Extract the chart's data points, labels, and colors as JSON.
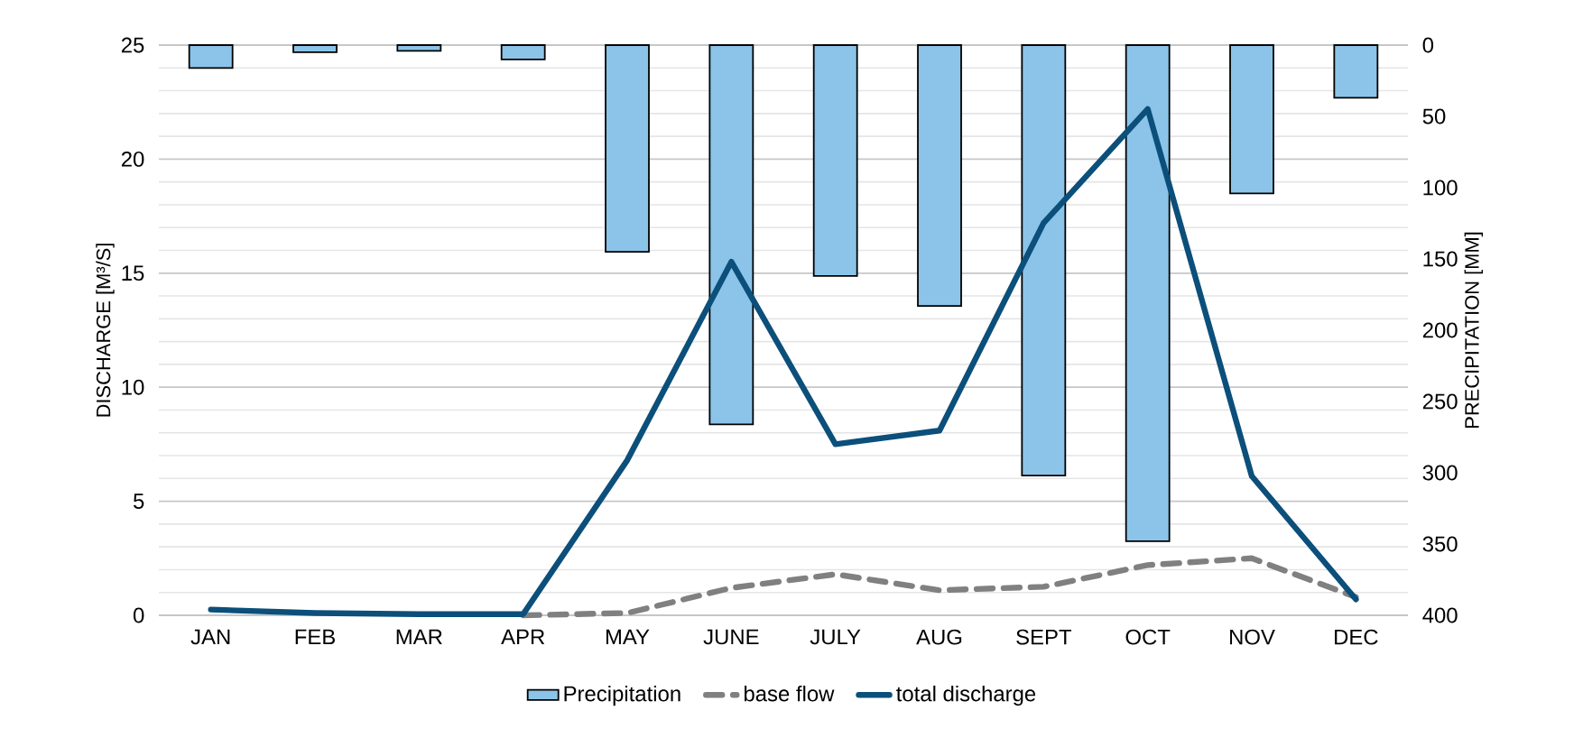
{
  "chart_data": {
    "type": "bar",
    "ylabel": "DISCHARGE  [M³/S]",
    "y2label": "PRECIPITATION [MM]",
    "categories": [
      "JAN",
      "FEB",
      "MAR",
      "APR",
      "MAY",
      "JUNE",
      "JULY",
      "AUG",
      "SEPT",
      "OCT",
      "NOV",
      "DEC"
    ],
    "series": [
      {
        "name": "Precipitation",
        "axis": "y2",
        "color": "#8bc4e8",
        "values": [
          16,
          5,
          4,
          10,
          145,
          266,
          162,
          183,
          302,
          348,
          104,
          37
        ]
      },
      {
        "name": "base flow",
        "type": "line",
        "line_style": "dashed",
        "color": "#808080",
        "values": [
          null,
          null,
          null,
          0,
          0.1,
          1.2,
          1.8,
          1.1,
          1.25,
          2.2,
          2.5,
          0.8
        ]
      },
      {
        "name": "total discharge",
        "type": "line",
        "line_style": "solid",
        "color": "#0b4f7a",
        "values": [
          0.25,
          0.1,
          0.05,
          0.05,
          6.8,
          15.5,
          7.5,
          8.1,
          17.2,
          22.2,
          6.1,
          0.7
        ]
      }
    ],
    "ylim": [
      0,
      25
    ],
    "yticks": [
      0,
      5,
      10,
      15,
      20,
      25
    ],
    "y2lim": [
      400,
      0
    ],
    "y2ticks": [
      0,
      50,
      100,
      150,
      200,
      250,
      300,
      350,
      400
    ],
    "grid": "y",
    "legend": "bottom",
    "marker": "none"
  }
}
